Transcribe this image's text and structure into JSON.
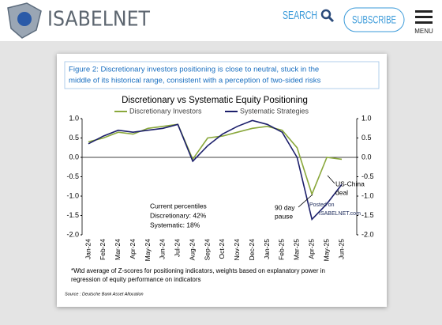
{
  "header": {
    "logo": "ISABELNET",
    "search": "SEARCH",
    "subscribe": "SUBSCRIBE",
    "menu": "MENU"
  },
  "figure": {
    "caption": [
      "Figure 2: Discretionary investors positioning is close to neutral, stuck in the",
      "middle of its historical range, consistent with a perception of two-sided risks"
    ],
    "footnote": [
      "*Wtd average of Z-scores for positioning indicators, weights based on explanatory power in",
      "regression of equity performance on indicators"
    ],
    "source": "Source : Deutsche Bank Asset Allocation",
    "watermark": [
      "Posted on",
      "ISABELNET.com"
    ]
  },
  "chart_data": {
    "type": "line",
    "title": "Discretionary  vs Systematic Equity Positioning",
    "categories": [
      "Jan-24",
      "Feb-24",
      "Mar-24",
      "Apr-24",
      "May-24",
      "Jun-24",
      "Jul-24",
      "Aug-24",
      "Sep-24",
      "Oct-24",
      "Nov-24",
      "Dec-24",
      "Jan-25",
      "Feb-25",
      "Mar-25",
      "Apr-25",
      "May-25",
      "Jun-25"
    ],
    "series": [
      {
        "name": "Discretionary Investors",
        "color": "#8aa83c",
        "values": [
          0.4,
          0.5,
          0.65,
          0.6,
          0.75,
          0.8,
          0.85,
          -0.05,
          0.5,
          0.55,
          0.65,
          0.75,
          0.8,
          0.7,
          0.25,
          -0.95,
          0.0,
          -0.05
        ]
      },
      {
        "name": "Systematic Strategies",
        "color": "#1c1f6b",
        "values": [
          0.35,
          0.55,
          0.7,
          0.65,
          0.7,
          0.75,
          0.85,
          -0.1,
          0.3,
          0.6,
          0.8,
          0.95,
          0.85,
          0.65,
          0.0,
          -1.6,
          -1.2,
          -0.7
        ]
      }
    ],
    "ylim": [
      -2.0,
      1.0
    ],
    "yticks": [
      {
        "value": 1,
        "label": "1.0"
      },
      {
        "value": 0.5,
        "label": "0.5"
      },
      {
        "value": 0,
        "label": "0.0"
      },
      {
        "value": -0.5,
        "label": "-0.5"
      },
      {
        "value": -1,
        "label": "-1.0"
      },
      {
        "value": -1.5,
        "label": "-1.5"
      },
      {
        "value": -2,
        "label": "-2.0"
      }
    ],
    "y2lim": [
      -2.0,
      1.0
    ],
    "y2ticks": [
      {
        "value": 1,
        "label": "1.0"
      },
      {
        "value": 0.5,
        "label": "0.5"
      },
      {
        "value": 0,
        "label": "0.0"
      },
      {
        "value": -0.5,
        "label": "-0.5"
      },
      {
        "value": -1,
        "label": "-1.0"
      },
      {
        "value": -1.5,
        "label": "-1.5"
      },
      {
        "value": -2,
        "label": "-2.0"
      }
    ],
    "annotations": [
      "Current percentiles",
      "Discretionary: 42%",
      "Systematic: 18%",
      "90 day",
      "pause",
      "US-China",
      "deal"
    ]
  }
}
